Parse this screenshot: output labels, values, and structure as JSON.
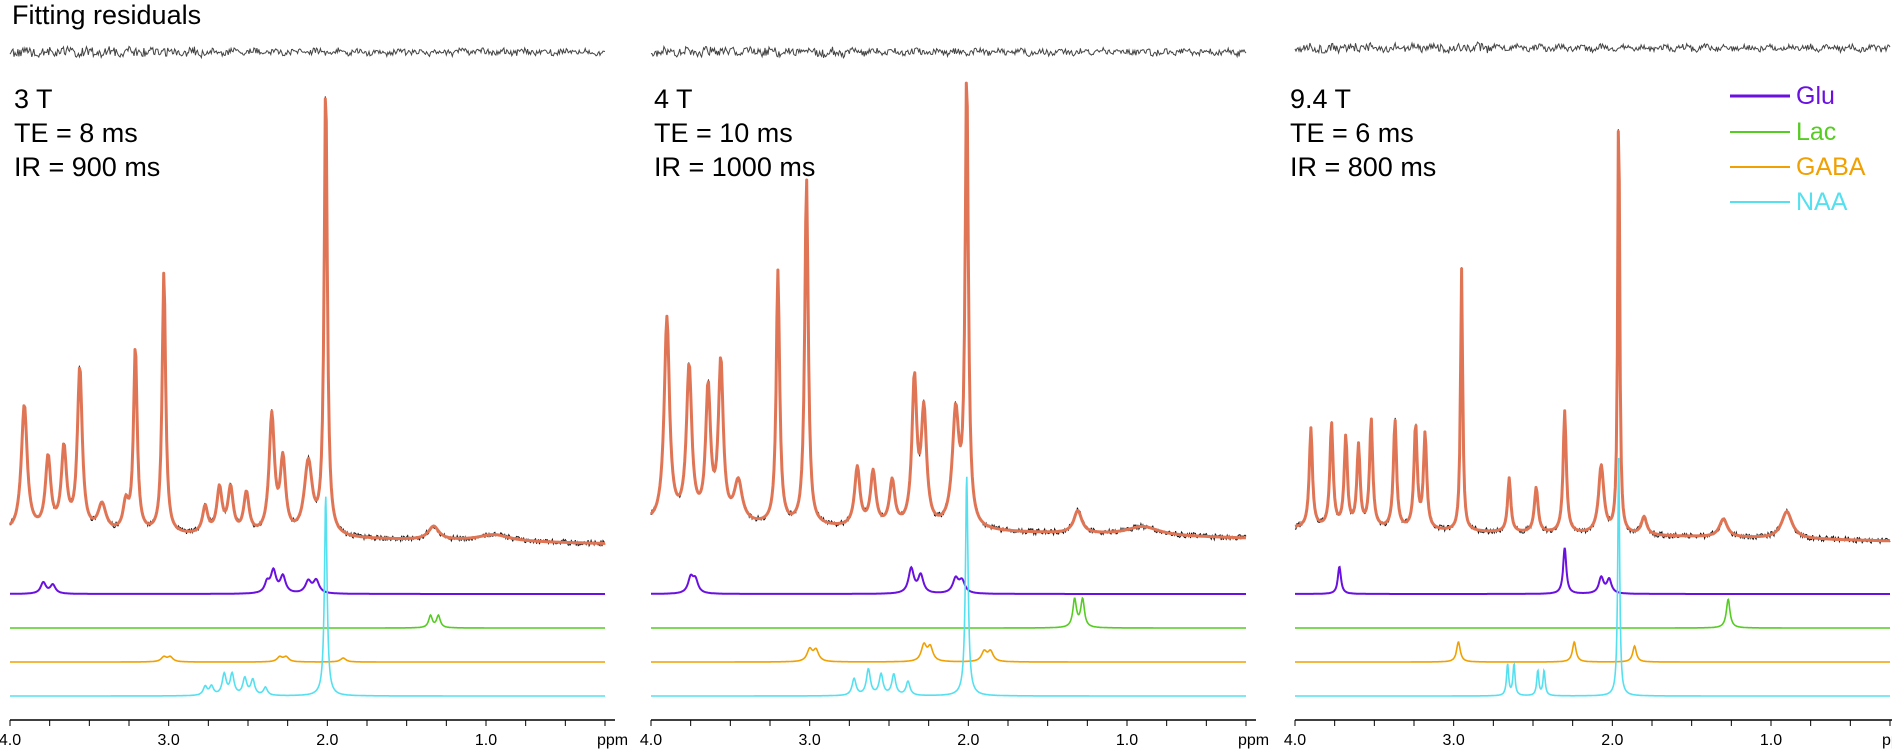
{
  "figure": {
    "residual_title": "Fitting residuals",
    "ppm_unit": "ppm",
    "tick_labels": [
      "4.0",
      "3.0",
      "2.0",
      "1.0"
    ]
  },
  "colors": {
    "data": "#111111",
    "fit": "#e07555",
    "residual": "#444444",
    "Glu": "#6a10e0",
    "Lac": "#55cc22",
    "GABA": "#f0a000",
    "NAA": "#55e0f0"
  },
  "legend": [
    {
      "name": "Glu",
      "color": "#6a10e0"
    },
    {
      "name": "Lac",
      "color": "#55cc22"
    },
    {
      "name": "GABA",
      "color": "#f0a000"
    },
    {
      "name": "NAA",
      "color": "#55e0f0"
    }
  ],
  "chart_data": [
    {
      "type": "line",
      "panel": "3T",
      "params": [
        "3 T",
        "TE = 8 ms",
        "IR = 900 ms"
      ],
      "xlabel": "ppm",
      "xlim": [
        4.0,
        0.25
      ],
      "xticks": [
        4.0,
        3.0,
        2.0,
        1.0
      ],
      "x_reversed": true,
      "baseline": 0.06,
      "peaks": [
        {
          "ppm": 3.91,
          "h": 0.28,
          "w": 0.022
        },
        {
          "ppm": 3.76,
          "h": 0.16,
          "w": 0.02
        },
        {
          "ppm": 3.66,
          "h": 0.18,
          "w": 0.02
        },
        {
          "ppm": 3.56,
          "h": 0.36,
          "w": 0.018
        },
        {
          "ppm": 3.42,
          "h": 0.06,
          "w": 0.03
        },
        {
          "ppm": 3.27,
          "h": 0.06,
          "w": 0.02
        },
        {
          "ppm": 3.21,
          "h": 0.41,
          "w": 0.014
        },
        {
          "ppm": 3.03,
          "h": 0.58,
          "w": 0.013
        },
        {
          "ppm": 2.77,
          "h": 0.06,
          "w": 0.02
        },
        {
          "ppm": 2.68,
          "h": 0.1,
          "w": 0.02
        },
        {
          "ppm": 2.61,
          "h": 0.1,
          "w": 0.02
        },
        {
          "ppm": 2.51,
          "h": 0.09,
          "w": 0.02
        },
        {
          "ppm": 2.35,
          "h": 0.26,
          "w": 0.02
        },
        {
          "ppm": 2.28,
          "h": 0.16,
          "w": 0.02
        },
        {
          "ppm": 2.12,
          "h": 0.16,
          "w": 0.03
        },
        {
          "ppm": 2.01,
          "h": 1.0,
          "w": 0.012
        },
        {
          "ppm": 1.33,
          "h": 0.03,
          "w": 0.04
        },
        {
          "ppm": 0.95,
          "h": 0.015,
          "w": 0.12
        }
      ],
      "components": {
        "Glu": [
          {
            "ppm": 3.79,
            "h": 0.28,
            "w": 0.02
          },
          {
            "ppm": 3.73,
            "h": 0.22,
            "w": 0.02
          },
          {
            "ppm": 2.38,
            "h": 0.25,
            "w": 0.018
          },
          {
            "ppm": 2.34,
            "h": 0.55,
            "w": 0.02
          },
          {
            "ppm": 2.28,
            "h": 0.42,
            "w": 0.02
          },
          {
            "ppm": 2.12,
            "h": 0.3,
            "w": 0.022
          },
          {
            "ppm": 2.07,
            "h": 0.32,
            "w": 0.022
          }
        ],
        "Lac": [
          {
            "ppm": 1.35,
            "h": 0.3,
            "w": 0.014
          },
          {
            "ppm": 1.3,
            "h": 0.3,
            "w": 0.014
          }
        ],
        "GABA": [
          {
            "ppm": 3.03,
            "h": 0.12,
            "w": 0.02
          },
          {
            "ppm": 2.99,
            "h": 0.12,
            "w": 0.02
          },
          {
            "ppm": 2.3,
            "h": 0.12,
            "w": 0.02
          },
          {
            "ppm": 2.26,
            "h": 0.12,
            "w": 0.02
          },
          {
            "ppm": 1.9,
            "h": 0.1,
            "w": 0.02
          }
        ],
        "NAA": [
          {
            "ppm": 2.77,
            "h": 0.22,
            "w": 0.015
          },
          {
            "ppm": 2.73,
            "h": 0.22,
            "w": 0.015
          },
          {
            "ppm": 2.65,
            "h": 0.52,
            "w": 0.015
          },
          {
            "ppm": 2.6,
            "h": 0.52,
            "w": 0.015
          },
          {
            "ppm": 2.52,
            "h": 0.42,
            "w": 0.015
          },
          {
            "ppm": 2.47,
            "h": 0.38,
            "w": 0.015
          },
          {
            "ppm": 2.39,
            "h": 0.2,
            "w": 0.015
          },
          {
            "ppm": 2.01,
            "h": 5.0,
            "w": 0.01
          }
        ]
      }
    },
    {
      "type": "line",
      "panel": "4T",
      "params": [
        "4 T",
        "TE = 10 ms",
        "IR = 1000 ms"
      ],
      "xlabel": "ppm",
      "xlim": [
        4.0,
        0.25
      ],
      "xticks": [
        4.0,
        3.0,
        2.0,
        1.0
      ],
      "x_reversed": true,
      "baseline": 0.08,
      "peaks": [
        {
          "ppm": 3.9,
          "h": 0.45,
          "w": 0.02
        },
        {
          "ppm": 3.76,
          "h": 0.34,
          "w": 0.02
        },
        {
          "ppm": 3.64,
          "h": 0.29,
          "w": 0.018
        },
        {
          "ppm": 3.56,
          "h": 0.35,
          "w": 0.018
        },
        {
          "ppm": 3.45,
          "h": 0.09,
          "w": 0.03
        },
        {
          "ppm": 3.2,
          "h": 0.56,
          "w": 0.013
        },
        {
          "ppm": 3.02,
          "h": 0.77,
          "w": 0.013
        },
        {
          "ppm": 2.7,
          "h": 0.13,
          "w": 0.02
        },
        {
          "ppm": 2.6,
          "h": 0.12,
          "w": 0.02
        },
        {
          "ppm": 2.48,
          "h": 0.1,
          "w": 0.02
        },
        {
          "ppm": 2.34,
          "h": 0.32,
          "w": 0.018
        },
        {
          "ppm": 2.28,
          "h": 0.25,
          "w": 0.02
        },
        {
          "ppm": 2.08,
          "h": 0.25,
          "w": 0.025
        },
        {
          "ppm": 2.01,
          "h": 1.0,
          "w": 0.012
        },
        {
          "ppm": 1.31,
          "h": 0.05,
          "w": 0.03
        },
        {
          "ppm": 0.9,
          "h": 0.02,
          "w": 0.12
        }
      ],
      "components": {
        "Glu": [
          {
            "ppm": 3.75,
            "h": 0.38,
            "w": 0.02
          },
          {
            "ppm": 3.72,
            "h": 0.32,
            "w": 0.02
          },
          {
            "ppm": 2.36,
            "h": 0.62,
            "w": 0.02
          },
          {
            "ppm": 2.3,
            "h": 0.45,
            "w": 0.02
          },
          {
            "ppm": 2.08,
            "h": 0.36,
            "w": 0.022
          },
          {
            "ppm": 2.04,
            "h": 0.3,
            "w": 0.022
          }
        ],
        "Lac": [
          {
            "ppm": 1.33,
            "h": 0.7,
            "w": 0.014
          },
          {
            "ppm": 1.28,
            "h": 0.7,
            "w": 0.014
          }
        ],
        "GABA": [
          {
            "ppm": 3.0,
            "h": 0.3,
            "w": 0.02
          },
          {
            "ppm": 2.96,
            "h": 0.28,
            "w": 0.02
          },
          {
            "ppm": 2.28,
            "h": 0.4,
            "w": 0.02
          },
          {
            "ppm": 2.24,
            "h": 0.35,
            "w": 0.02
          },
          {
            "ppm": 1.9,
            "h": 0.25,
            "w": 0.02
          },
          {
            "ppm": 1.86,
            "h": 0.25,
            "w": 0.02
          }
        ],
        "NAA": [
          {
            "ppm": 2.72,
            "h": 0.42,
            "w": 0.015
          },
          {
            "ppm": 2.63,
            "h": 0.65,
            "w": 0.015
          },
          {
            "ppm": 2.55,
            "h": 0.52,
            "w": 0.015
          },
          {
            "ppm": 2.47,
            "h": 0.52,
            "w": 0.015
          },
          {
            "ppm": 2.38,
            "h": 0.35,
            "w": 0.015
          },
          {
            "ppm": 2.01,
            "h": 5.5,
            "w": 0.01
          }
        ]
      }
    },
    {
      "type": "line",
      "panel": "9.4T",
      "params": [
        "9.4 T",
        "TE = 6 ms",
        "IR = 800 ms"
      ],
      "xlabel": "ppm",
      "xlim": [
        4.0,
        0.25
      ],
      "xticks": [
        4.0,
        3.0,
        2.0,
        1.0
      ],
      "x_reversed": true,
      "baseline": 0.07,
      "peaks": [
        {
          "ppm": 3.9,
          "h": 0.22,
          "w": 0.012
        },
        {
          "ppm": 3.77,
          "h": 0.23,
          "w": 0.012
        },
        {
          "ppm": 3.68,
          "h": 0.2,
          "w": 0.012
        },
        {
          "ppm": 3.6,
          "h": 0.18,
          "w": 0.012
        },
        {
          "ppm": 3.52,
          "h": 0.24,
          "w": 0.012
        },
        {
          "ppm": 3.37,
          "h": 0.24,
          "w": 0.012
        },
        {
          "ppm": 3.24,
          "h": 0.23,
          "w": 0.012
        },
        {
          "ppm": 3.18,
          "h": 0.21,
          "w": 0.012
        },
        {
          "ppm": 2.95,
          "h": 0.58,
          "w": 0.008
        },
        {
          "ppm": 2.65,
          "h": 0.12,
          "w": 0.012
        },
        {
          "ppm": 2.48,
          "h": 0.1,
          "w": 0.014
        },
        {
          "ppm": 2.3,
          "h": 0.27,
          "w": 0.012
        },
        {
          "ppm": 2.07,
          "h": 0.15,
          "w": 0.02
        },
        {
          "ppm": 1.96,
          "h": 1.0,
          "w": 0.007
        },
        {
          "ppm": 1.8,
          "h": 0.04,
          "w": 0.02
        },
        {
          "ppm": 1.3,
          "h": 0.04,
          "w": 0.03
        },
        {
          "ppm": 0.9,
          "h": 0.06,
          "w": 0.04
        }
      ],
      "components": {
        "Glu": [
          {
            "ppm": 3.72,
            "h": 0.68,
            "w": 0.012
          },
          {
            "ppm": 2.3,
            "h": 1.15,
            "w": 0.012
          },
          {
            "ppm": 2.07,
            "h": 0.4,
            "w": 0.018
          },
          {
            "ppm": 2.02,
            "h": 0.35,
            "w": 0.018
          }
        ],
        "Lac": [
          {
            "ppm": 1.27,
            "h": 0.72,
            "w": 0.014
          }
        ],
        "GABA": [
          {
            "ppm": 2.97,
            "h": 0.5,
            "w": 0.014
          },
          {
            "ppm": 2.24,
            "h": 0.5,
            "w": 0.014
          },
          {
            "ppm": 1.86,
            "h": 0.4,
            "w": 0.014
          }
        ],
        "NAA": [
          {
            "ppm": 2.66,
            "h": 0.78,
            "w": 0.008
          },
          {
            "ppm": 2.62,
            "h": 0.78,
            "w": 0.008
          },
          {
            "ppm": 2.47,
            "h": 0.62,
            "w": 0.008
          },
          {
            "ppm": 2.43,
            "h": 0.62,
            "w": 0.008
          },
          {
            "ppm": 1.96,
            "h": 6.0,
            "w": 0.007
          }
        ]
      }
    }
  ]
}
